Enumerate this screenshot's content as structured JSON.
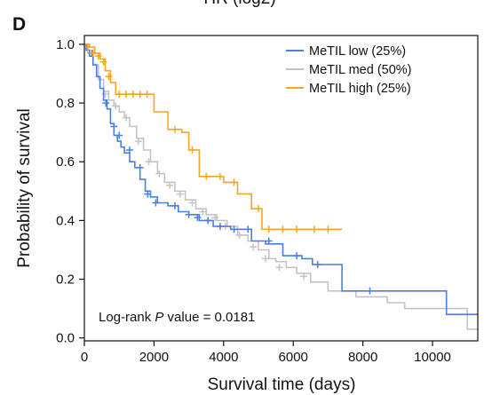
{
  "panel_label": "D",
  "top_cropped_text": "HR (log2)",
  "chart_data": {
    "type": "line",
    "xlabel": "Survival time (days)",
    "ylabel": "Probability of survival",
    "xlim": [
      0,
      11300
    ],
    "ylim": [
      -0.01,
      1.03
    ],
    "x_ticks": [
      0,
      2000,
      4000,
      6000,
      8000,
      10000
    ],
    "y_ticks": [
      0.0,
      0.2,
      0.4,
      0.6,
      0.8,
      1.0
    ],
    "x_tick_labels": [
      "0",
      "2000",
      "4000",
      "6000",
      "8000",
      "10000"
    ],
    "y_tick_labels": [
      "0.0",
      "0.2",
      "0.4",
      "0.6",
      "0.8",
      "1.0"
    ],
    "grid": false,
    "legend_position": "top-right",
    "annotation": {
      "prefix": "Log-rank ",
      "italic": "P",
      "suffix": " value  =  0.0181"
    },
    "series": [
      {
        "name": "MeTIL low (25%)",
        "color": "#4a7fe0",
        "x": [
          0,
          50,
          150,
          250,
          350,
          450,
          550,
          650,
          750,
          850,
          950,
          1050,
          1150,
          1300,
          1450,
          1600,
          1750,
          1900,
          2100,
          2400,
          2700,
          3000,
          3300,
          3700,
          4200,
          4800,
          5200,
          5700,
          6250,
          6550,
          7400,
          10400,
          11300
        ],
        "y": [
          1.0,
          0.98,
          0.96,
          0.93,
          0.89,
          0.85,
          0.81,
          0.78,
          0.73,
          0.69,
          0.67,
          0.65,
          0.63,
          0.6,
          0.58,
          0.54,
          0.5,
          0.48,
          0.46,
          0.45,
          0.43,
          0.42,
          0.4,
          0.38,
          0.37,
          0.33,
          0.32,
          0.28,
          0.27,
          0.25,
          0.16,
          0.08,
          0.08
        ],
        "censored_x": [
          220,
          620,
          850,
          1000,
          1300,
          1600,
          1820,
          2050,
          2600,
          3000,
          3250,
          3550,
          3900,
          4300,
          4700,
          5300,
          6100,
          6700,
          8200
        ],
        "censored_y": [
          0.97,
          0.8,
          0.72,
          0.69,
          0.64,
          0.58,
          0.49,
          0.46,
          0.45,
          0.42,
          0.41,
          0.4,
          0.38,
          0.37,
          0.37,
          0.33,
          0.28,
          0.25,
          0.16
        ]
      },
      {
        "name": "MeTIL med (50%)",
        "color": "#c4c4c4",
        "x": [
          0,
          100,
          250,
          400,
          550,
          700,
          850,
          1000,
          1150,
          1300,
          1500,
          1700,
          1900,
          2100,
          2300,
          2600,
          2900,
          3200,
          3500,
          3800,
          4100,
          4400,
          4700,
          5000,
          5300,
          5500,
          5800,
          6100,
          6500,
          7000,
          7800,
          8700,
          9200,
          11000,
          11300
        ],
        "y": [
          1.0,
          0.97,
          0.93,
          0.88,
          0.84,
          0.81,
          0.79,
          0.77,
          0.75,
          0.72,
          0.68,
          0.64,
          0.6,
          0.56,
          0.53,
          0.5,
          0.47,
          0.44,
          0.42,
          0.4,
          0.38,
          0.35,
          0.33,
          0.3,
          0.27,
          0.26,
          0.24,
          0.22,
          0.19,
          0.16,
          0.14,
          0.12,
          0.1,
          0.03,
          0.03
        ],
        "censored_x": [
          600,
          900,
          1200,
          1550,
          1850,
          2150,
          2450,
          2750,
          3100,
          3400,
          3750,
          4050,
          4450,
          4850,
          5200,
          5600,
          6300
        ],
        "censored_y": [
          0.83,
          0.79,
          0.75,
          0.67,
          0.6,
          0.56,
          0.52,
          0.49,
          0.46,
          0.43,
          0.41,
          0.38,
          0.35,
          0.31,
          0.27,
          0.24,
          0.21
        ]
      },
      {
        "name": "MeTIL high (25%)",
        "color": "#f5a524",
        "x": [
          0,
          150,
          300,
          450,
          600,
          750,
          900,
          2000,
          2400,
          2800,
          3000,
          3300,
          4000,
          4400,
          4800,
          5100,
          7400
        ],
        "y": [
          1.0,
          0.99,
          0.97,
          0.95,
          0.91,
          0.87,
          0.83,
          0.77,
          0.71,
          0.7,
          0.64,
          0.55,
          0.53,
          0.49,
          0.44,
          0.37,
          0.37
        ],
        "censored_x": [
          100,
          250,
          400,
          550,
          700,
          1000,
          1200,
          1400,
          1600,
          1800,
          2600,
          3100,
          3500,
          3900,
          4300,
          5000,
          5300,
          5700,
          6100,
          6600,
          7000
        ],
        "censored_y": [
          0.99,
          0.97,
          0.96,
          0.94,
          0.89,
          0.83,
          0.83,
          0.83,
          0.83,
          0.83,
          0.71,
          0.64,
          0.55,
          0.55,
          0.53,
          0.44,
          0.37,
          0.37,
          0.37,
          0.37,
          0.37
        ]
      }
    ]
  }
}
